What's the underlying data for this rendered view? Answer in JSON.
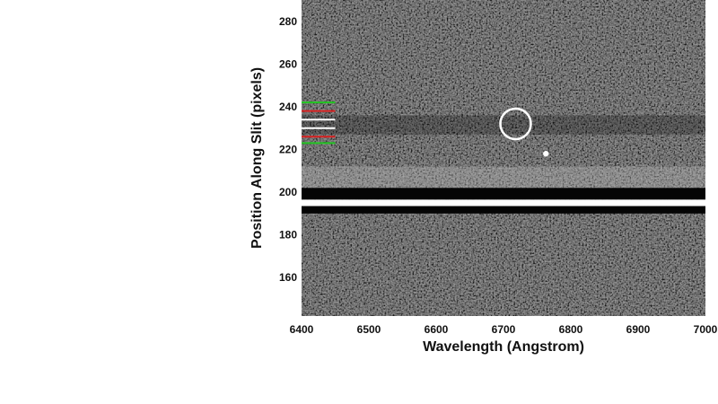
{
  "chart_data": {
    "type": "heatmap",
    "title": "",
    "xlabel": "Wavelength (Angstrom)",
    "ylabel": "Position Along Slit (pixels)",
    "xlim": [
      6400,
      7000
    ],
    "ylim": [
      142,
      290
    ],
    "x_ticks": [
      6400,
      6500,
      6600,
      6700,
      6800,
      6900,
      7000
    ],
    "y_ticks": [
      160,
      180,
      200,
      220,
      240,
      260,
      280
    ],
    "colormap": "grayscale",
    "bright_trace": {
      "y_range": [
        193.5,
        196.5
      ],
      "color": "#ffffff"
    },
    "dark_bands": [
      [
        196.5,
        202
      ],
      [
        190,
        193.5
      ]
    ],
    "bright_band": {
      "y_range": [
        202,
        212
      ],
      "color": "#bdbdbd"
    },
    "faint_band_y": [
      227,
      236
    ],
    "emission_spot": {
      "x": 6763,
      "y": 218,
      "color": "#ffffff"
    },
    "circle_marker": {
      "x": 6718,
      "y": 232,
      "color": "#ffffff"
    },
    "aperture_lines": [
      {
        "y": 242,
        "color": "#22c522"
      },
      {
        "y": 238,
        "color": "#d62020"
      },
      {
        "y": 234,
        "color": "#ffffff"
      },
      {
        "y": 230,
        "color": "#ffffff"
      },
      {
        "y": 226,
        "color": "#d62020"
      },
      {
        "y": 223,
        "color": "#22c522"
      }
    ],
    "aperture_x_range": [
      6400,
      6450
    ]
  }
}
